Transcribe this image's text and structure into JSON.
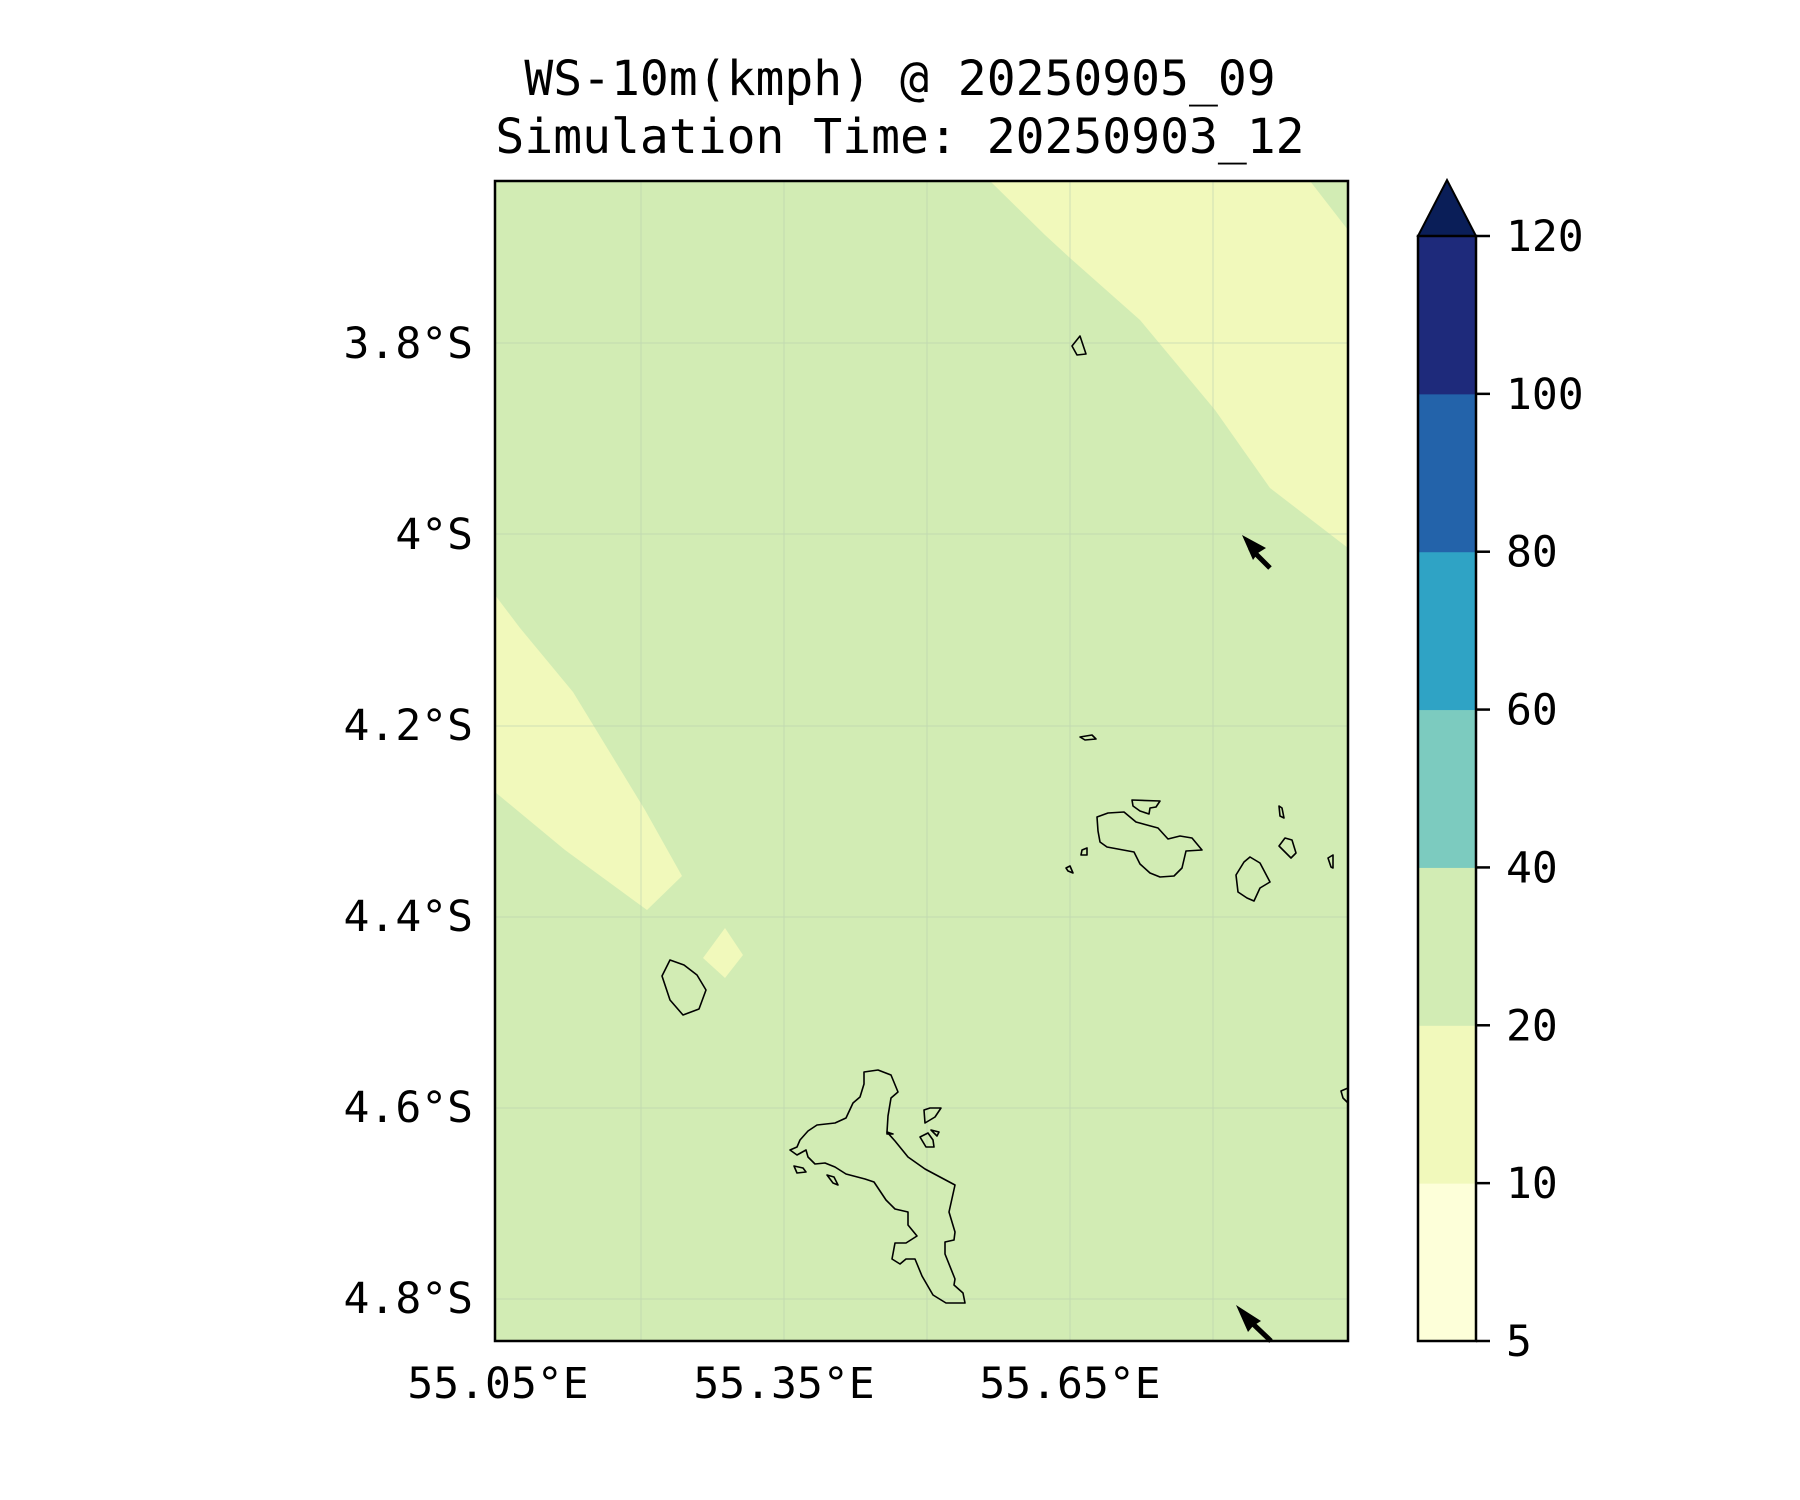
{
  "title": {
    "line1": "WS-10m(kmph) @ 20250905_09",
    "line2": "Simulation Time: 20250903_12"
  },
  "map": {
    "lat_labels": [
      "3.8°S",
      "4°S",
      "4.2°S",
      "4.4°S",
      "4.6°S",
      "4.8°S"
    ],
    "lon_labels": [
      "55.05°E",
      "55.35°E",
      "55.65°E"
    ],
    "background_fill": "#d2ecb4",
    "low_wind_fill": "#f1f9bb",
    "coastline_color": "#000000",
    "wind_arrows": [
      {
        "name": "wind-arrow-upper",
        "direction": "northwest"
      },
      {
        "name": "wind-arrow-lower",
        "direction": "northwest"
      }
    ]
  },
  "colorbar": {
    "ticks": [
      "5",
      "10",
      "20",
      "40",
      "60",
      "80",
      "100",
      "120"
    ],
    "colors": [
      "#fdffd9",
      "#f1f9bb",
      "#d2ecb4",
      "#7ccbbf",
      "#2fa3c5",
      "#2363aa",
      "#1e2a7b"
    ],
    "extend_color": "#0a1e58",
    "extend": "max"
  }
}
